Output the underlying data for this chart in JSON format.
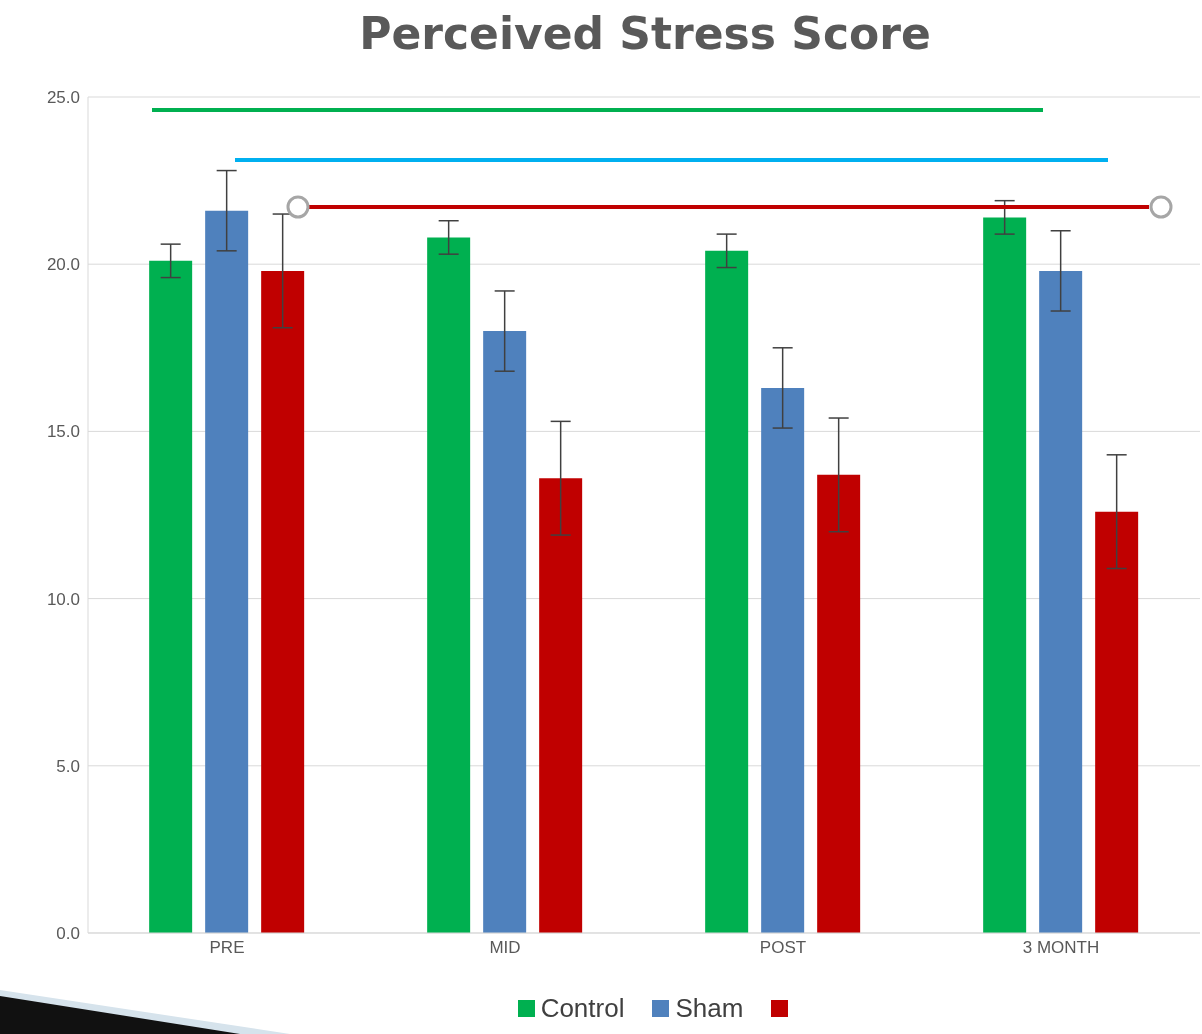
{
  "chart_data": {
    "type": "bar",
    "title": "Perceived Stress Score",
    "categories": [
      "PRE",
      "MID",
      "POST",
      "3 MONTH"
    ],
    "series": [
      {
        "name": "Control",
        "color": "#00b050",
        "values": [
          20.1,
          20.8,
          20.4,
          21.4
        ],
        "errors": [
          0.5,
          0.5,
          0.5,
          0.5
        ]
      },
      {
        "name": "Sham",
        "color": "#4f81bd",
        "values": [
          21.6,
          18.0,
          16.3,
          19.8
        ],
        "errors": [
          1.2,
          1.2,
          1.2,
          1.2
        ]
      },
      {
        "color": "#c00000",
        "values": [
          19.8,
          13.6,
          13.7,
          12.6
        ],
        "errors": [
          1.7,
          1.7,
          1.7,
          1.7
        ]
      }
    ],
    "ylim": [
      0,
      25
    ],
    "yticks": [
      {
        "value": 0,
        "label": "0.0"
      },
      {
        "value": 5,
        "label": "5.0"
      },
      {
        "value": 10,
        "label": "10.0"
      },
      {
        "value": 15,
        "label": "15.0"
      },
      {
        "value": 20,
        "label": "20.0"
      },
      {
        "value": 25,
        "label": "25.0"
      }
    ],
    "grid": "y",
    "legend": "bottom"
  }
}
